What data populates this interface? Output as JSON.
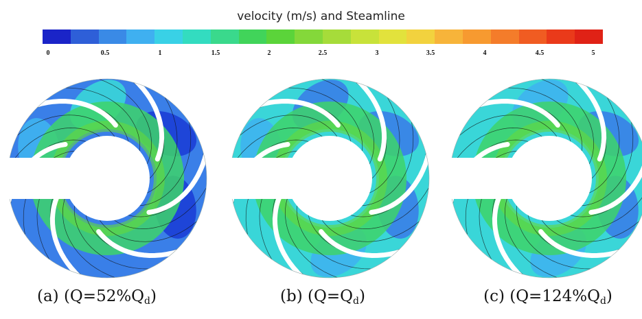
{
  "title": "velocity (m/s) and Steamline",
  "colorbar": {
    "tick_labels": [
      "0",
      "0.5",
      "1",
      "1.5",
      "2",
      "2.5",
      "3",
      "3.5",
      "4",
      "4.5",
      "5"
    ],
    "colors": [
      "#1a24c8",
      "#2e5fd8",
      "#3a8ae6",
      "#3fb0f0",
      "#39d1e6",
      "#33dcc0",
      "#3ad98c",
      "#41d45a",
      "#5bd43a",
      "#84d83a",
      "#a6dc3a",
      "#c8e23a",
      "#e2e23c",
      "#f2d23e",
      "#f7b43a",
      "#f79a30",
      "#f47c2a",
      "#f05c22",
      "#ea3a1a",
      "#e02216"
    ]
  },
  "panels": [
    {
      "caption_prefix": "(a) (Q=52%Q",
      "caption_sub": "d",
      "caption_suffix": ")"
    },
    {
      "caption_prefix": "(b) (Q=Q",
      "caption_sub": "d",
      "caption_suffix": ")"
    },
    {
      "caption_prefix": "(c) (Q=124%Q",
      "caption_sub": "d",
      "caption_suffix": ")"
    }
  ],
  "palette": {
    "deep_blue": "#1c3fd6",
    "blue": "#3a7fe8",
    "light_blue": "#3fb4f0",
    "cyan": "#3ad6d8",
    "green": "#3ed46a",
    "bright_green": "#66d83a",
    "streamline": "#111111"
  }
}
